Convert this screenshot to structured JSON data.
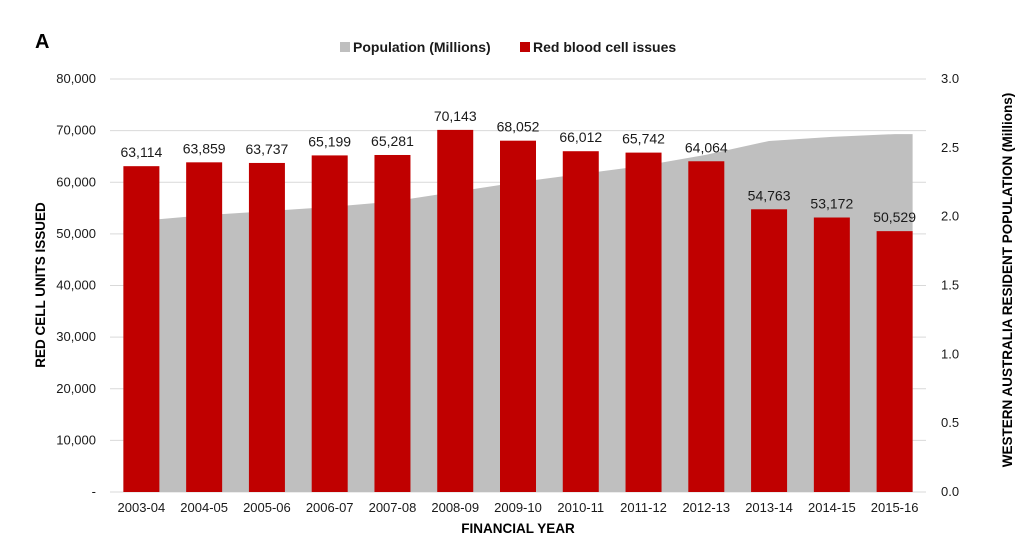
{
  "panel_label": "A",
  "colors": {
    "bar": "#c00000",
    "area": "#bfbfbf",
    "grid": "#d9d9d9",
    "text": "#1a1a1a"
  },
  "chart_data": {
    "type": "bar",
    "categories": [
      "2003-04",
      "2004-05",
      "2005-06",
      "2006-07",
      "2007-08",
      "2008-09",
      "2009-10",
      "2010-11",
      "2011-12",
      "2012-13",
      "2013-14",
      "2014-15",
      "2015-16"
    ],
    "series": [
      {
        "name": "Red blood cell issues",
        "type": "bar",
        "axis": "left",
        "values": [
          63114,
          63859,
          63737,
          65199,
          65281,
          70143,
          68052,
          66012,
          65742,
          64064,
          54763,
          53172,
          50529
        ],
        "labels": [
          "63,114",
          "63,859",
          "63,737",
          "65,199",
          "65,281",
          "70,143",
          "68,052",
          "66,012",
          "65,742",
          "64,064",
          "54,763",
          "53,172",
          "50,529"
        ]
      },
      {
        "name": "Population (Millions)",
        "type": "area",
        "axis": "right",
        "values": [
          1.97,
          2.01,
          2.04,
          2.07,
          2.11,
          2.18,
          2.25,
          2.31,
          2.37,
          2.45,
          2.55,
          2.58,
          2.6
        ]
      }
    ],
    "legend": [
      "Population (Millions)",
      "Red blood cell issues"
    ],
    "legend_position": "top",
    "xlabel": "FINANCIAL YEAR",
    "ylabel": "RED CELL UNITS ISSUED",
    "y2label": "WESTERN AUSTRALIA RESIDENT POPULATION (Millions)",
    "ylim": [
      0,
      80000
    ],
    "y2lim": [
      0,
      3.0
    ],
    "yticks": [
      "-",
      "10,000",
      "20,000",
      "30,000",
      "40,000",
      "50,000",
      "60,000",
      "70,000",
      "80,000"
    ],
    "y2ticks": [
      "0.0",
      "0.5",
      "1.0",
      "1.5",
      "2.0",
      "2.5",
      "3.0"
    ],
    "grid": true
  }
}
